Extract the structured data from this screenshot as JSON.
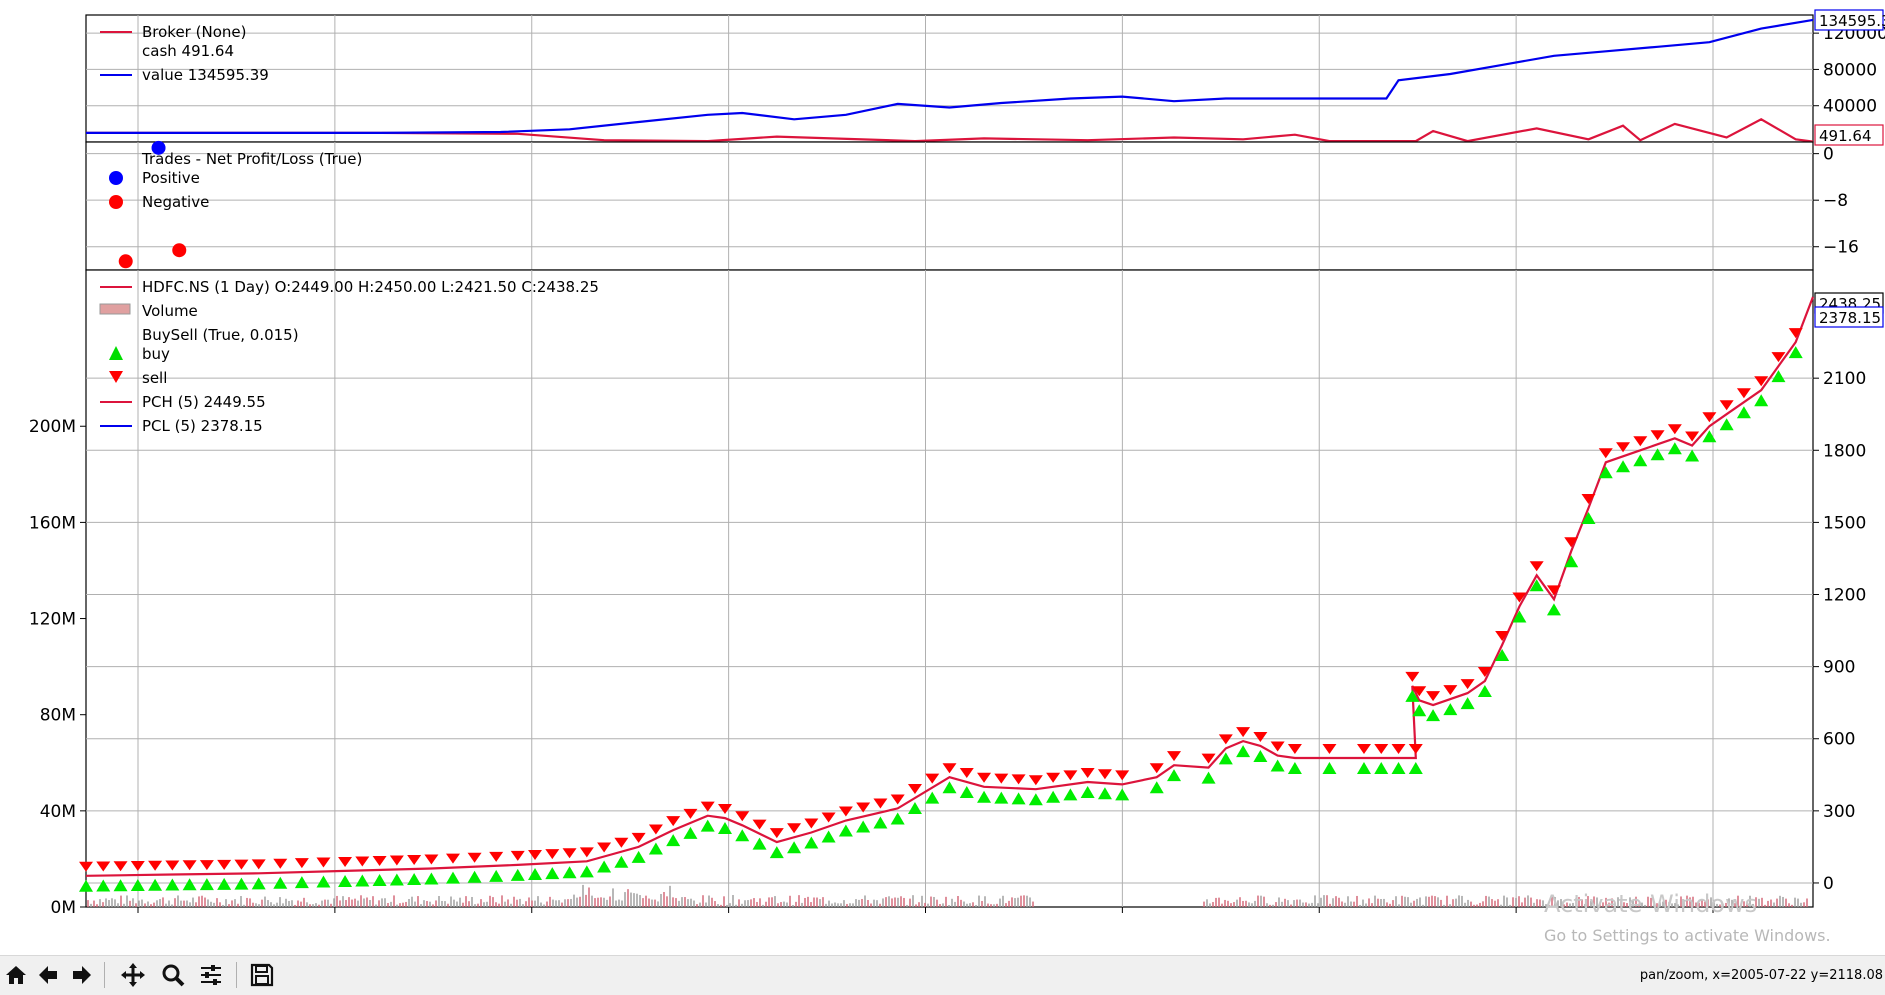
{
  "chart_data": [
    {
      "type": "line",
      "panel": "broker",
      "ylim": [
        0,
        140000
      ],
      "yticks": [
        40000,
        80000,
        120000
      ],
      "ytick_labels": [
        "40000",
        "80000",
        "120000"
      ],
      "legend": [
        {
          "label": "Broker (None)",
          "color": "#dc143c"
        },
        {
          "label": "cash 491.64",
          "color": ""
        },
        {
          "label": "value 134595.39",
          "color": "#0000ee"
        }
      ],
      "last_value_tags": [
        {
          "text": "134595.3",
          "color": "#0000ee"
        },
        {
          "text": "491.64",
          "color": "#dc143c"
        }
      ],
      "series": [
        {
          "name": "cash",
          "color": "#dc143c",
          "x": [
            0,
            0.08,
            0.17,
            0.25,
            0.3,
            0.36,
            0.4,
            0.48,
            0.52,
            0.58,
            0.63,
            0.67,
            0.7,
            0.72,
            0.75,
            0.77,
            0.78,
            0.8,
            0.84,
            0.87,
            0.89,
            0.9,
            0.92,
            0.95,
            0.97,
            0.99,
            1.0
          ],
          "y": [
            10000,
            10000,
            10000,
            9000,
            2000,
            1000,
            6000,
            1000,
            4000,
            2000,
            5000,
            3000,
            8000,
            1000,
            1000,
            1000,
            12000,
            1000,
            15000,
            3000,
            18000,
            2000,
            20000,
            5000,
            25000,
            3000,
            491.64
          ]
        },
        {
          "name": "value",
          "color": "#0000ee",
          "x": [
            0,
            0.1,
            0.17,
            0.24,
            0.28,
            0.32,
            0.36,
            0.38,
            0.41,
            0.44,
            0.47,
            0.5,
            0.53,
            0.57,
            0.6,
            0.63,
            0.66,
            0.69,
            0.7,
            0.72,
            0.74,
            0.753,
            0.76,
            0.79,
            0.82,
            0.85,
            0.88,
            0.91,
            0.94,
            0.97,
            1.0
          ],
          "y": [
            10000,
            10000,
            10000,
            11000,
            14000,
            22000,
            30000,
            32000,
            25000,
            30000,
            42000,
            38000,
            43000,
            48000,
            50000,
            45000,
            48000,
            48000,
            48000,
            48000,
            48000,
            48000,
            68000,
            75000,
            85000,
            95000,
            100000,
            105000,
            110000,
            125000,
            134595.39
          ]
        }
      ]
    },
    {
      "type": "scatter",
      "panel": "trades",
      "ylim": [
        -20,
        2
      ],
      "yticks": [
        0,
        -8,
        -16
      ],
      "ytick_labels": [
        "0",
        "−8",
        "−16"
      ],
      "legend": [
        {
          "label": "Trades - Net Profit/Loss (True)",
          "color": ""
        },
        {
          "label": "Positive",
          "color": "#0000ff"
        },
        {
          "label": "Negative",
          "color": "#ff0000"
        }
      ],
      "series": [
        {
          "name": "Positive",
          "color": "#0000ff",
          "x": [
            0.042
          ],
          "y": [
            1.0
          ]
        },
        {
          "name": "Negative",
          "color": "#ff0000",
          "x": [
            0.023,
            0.054
          ],
          "y": [
            -18.5,
            -16.6
          ]
        }
      ]
    },
    {
      "type": "line",
      "panel": "price",
      "ylim": [
        -100,
        2550
      ],
      "yticks": [
        0,
        300,
        600,
        900,
        1200,
        1500,
        1800,
        2100
      ],
      "ytick_labels": [
        "0",
        "300",
        "600",
        "900",
        "1200",
        "1500",
        "1800",
        "2100"
      ],
      "volume_ylim": [
        0,
        265
      ],
      "volume_yticks": [
        0,
        40,
        80,
        120,
        160,
        200
      ],
      "volume_ytick_labels": [
        "0M",
        "40M",
        "80M",
        "120M",
        "160M",
        "200M"
      ],
      "xticks_count": 9,
      "legend": [
        {
          "label": "HDFC.NS (1 Day) O:2449.00 H:2450.00 L:2421.50 C:2438.25",
          "color": "#dc143c"
        },
        {
          "label": "Volume",
          "color": "#e0a0a0"
        },
        {
          "label": "BuySell (True, 0.015)",
          "color": ""
        },
        {
          "label": "buy",
          "color": "#00dd00"
        },
        {
          "label": "sell",
          "color": "#ff0000"
        },
        {
          "label": "PCH (5) 2449.55",
          "color": "#dc143c"
        },
        {
          "label": "PCL (5) 2378.15",
          "color": "#0000ee"
        }
      ],
      "last_value_tags": [
        {
          "text": "2438.25",
          "color": "#000000"
        },
        {
          "text": "2378.15",
          "color": "#0000ee"
        }
      ],
      "series": [
        {
          "name": "Close",
          "color": "#dc143c",
          "x": [
            0,
            0.05,
            0.1,
            0.15,
            0.2,
            0.25,
            0.29,
            0.3,
            0.32,
            0.34,
            0.36,
            0.37,
            0.38,
            0.4,
            0.42,
            0.44,
            0.47,
            0.5,
            0.52,
            0.55,
            0.58,
            0.6,
            0.62,
            0.63,
            0.65,
            0.66,
            0.67,
            0.68,
            0.69,
            0.7,
            0.72,
            0.74,
            0.76,
            0.77,
            0.768,
            0.772,
            0.78,
            0.8,
            0.81,
            0.82,
            0.83,
            0.84,
            0.85,
            0.86,
            0.87,
            0.88,
            0.9,
            0.92,
            0.93,
            0.94,
            0.95,
            0.97,
            0.99,
            1.0
          ],
          "y": [
            30,
            35,
            40,
            50,
            60,
            75,
            90,
            110,
            150,
            220,
            280,
            270,
            240,
            170,
            210,
            260,
            310,
            440,
            400,
            390,
            420,
            410,
            440,
            490,
            480,
            560,
            590,
            570,
            530,
            520,
            520,
            520,
            520,
            520,
            820,
            760,
            740,
            790,
            840,
            990,
            1150,
            1280,
            1180,
            1380,
            1560,
            1750,
            1800,
            1850,
            1820,
            1900,
            1950,
            2050,
            2250,
            2438.25
          ]
        },
        {
          "name": "PCH (5)",
          "color": "#dc143c",
          "x": [],
          "y": []
        },
        {
          "name": "PCL (5)",
          "color": "#0000ee",
          "x": [],
          "y": []
        }
      ]
    }
  ],
  "toolbar": {
    "buttons": [
      "home-icon",
      "back-icon",
      "forward-icon",
      "pan-icon",
      "zoom-icon",
      "configure-icon",
      "save-icon"
    ],
    "status": "pan/zoom, x=2005-07-22 y=2118.08"
  },
  "watermark": {
    "line1": "Activate Windows",
    "line2": "Go to Settings to activate Windows."
  }
}
